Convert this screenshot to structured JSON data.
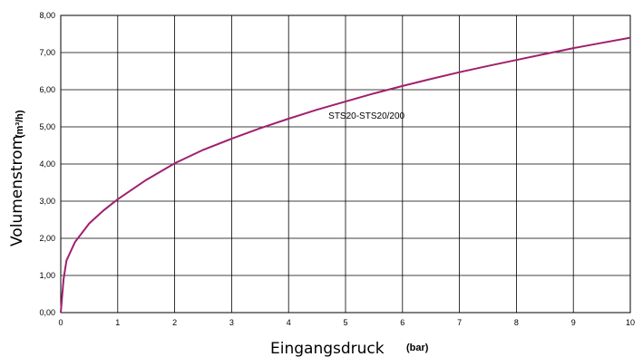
{
  "chart_data": {
    "type": "line",
    "title": "",
    "xlabel": "Eingangsdruck",
    "xlabel_unit": "(bar)",
    "ylabel": "Volumenstrom",
    "ylabel_unit": "(m³/h)",
    "xlim": [
      0,
      10
    ],
    "ylim": [
      0,
      8
    ],
    "xticks": [
      "0",
      "1",
      "2",
      "3",
      "4",
      "5",
      "6",
      "7",
      "8",
      "9",
      "10"
    ],
    "yticks": [
      "0,00",
      "1,00",
      "2,00",
      "3,00",
      "4,00",
      "5,00",
      "6,00",
      "7,00",
      "8,00"
    ],
    "grid": true,
    "annotation": "STS20-STS20/200",
    "line_color": "#a0206e",
    "series": [
      {
        "name": "STS20-STS20/200",
        "x": [
          0,
          0.05,
          0.1,
          0.25,
          0.5,
          0.75,
          1,
          1.5,
          2,
          2.5,
          3,
          3.5,
          4,
          4.5,
          5,
          5.5,
          6,
          6.5,
          7,
          7.5,
          8,
          8.5,
          9,
          9.5,
          10
        ],
        "y": [
          0,
          0.9,
          1.4,
          1.9,
          2.4,
          2.75,
          3.05,
          3.57,
          4.02,
          4.38,
          4.68,
          4.96,
          5.22,
          5.46,
          5.68,
          5.9,
          6.1,
          6.29,
          6.47,
          6.64,
          6.8,
          6.96,
          7.12,
          7.26,
          7.4
        ]
      }
    ]
  }
}
